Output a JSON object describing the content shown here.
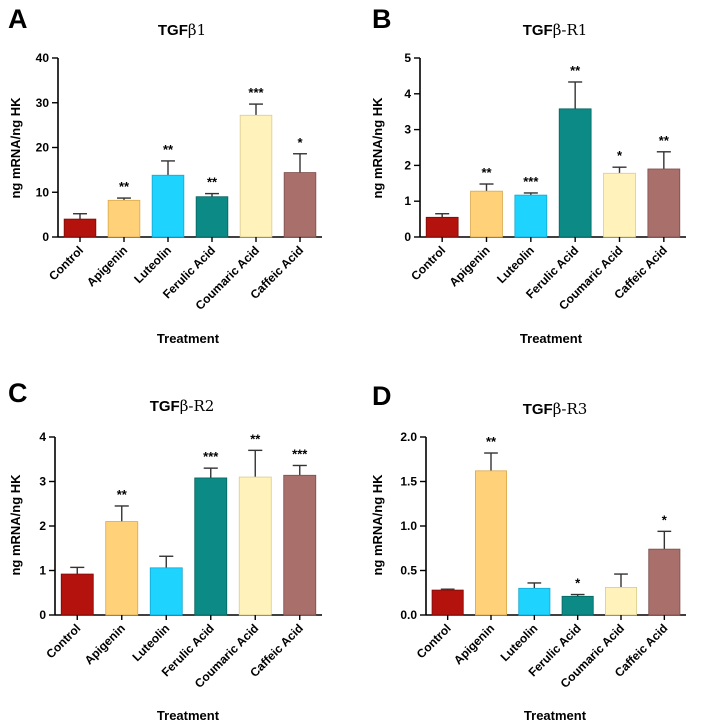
{
  "chart_data": [
    {
      "type": "bar",
      "panel": "A",
      "title_main": "TGF",
      "title_greek": "β",
      "title_suffix": "1",
      "ylabel": "ng mRNA/ng HK",
      "xlabel": "Treatment",
      "ylim": [
        0,
        40
      ],
      "yticks": [
        "0",
        "10",
        "20",
        "30",
        "40"
      ],
      "ytick_values": [
        0,
        10,
        20,
        30,
        40
      ],
      "categories": [
        "Control",
        "Apigenin",
        "Luteolin",
        "Ferulic Acid",
        "Coumaric Acid",
        "Caffeic Acid"
      ],
      "values": [
        4.0,
        8.2,
        13.8,
        9.0,
        27.2,
        14.4
      ],
      "errors": [
        1.2,
        0.5,
        3.2,
        0.7,
        2.5,
        4.2
      ],
      "significance": [
        "",
        "**",
        "**",
        "**",
        "***",
        "*"
      ]
    },
    {
      "type": "bar",
      "panel": "B",
      "title_main": "TGF",
      "title_greek": "β",
      "title_suffix": "-R1",
      "ylabel": "ng mRNA/ng HK",
      "xlabel": "Treatment",
      "ylim": [
        0,
        5
      ],
      "yticks": [
        "0",
        "1",
        "2",
        "3",
        "4",
        "5"
      ],
      "ytick_values": [
        0,
        1,
        2,
        3,
        4,
        5
      ],
      "categories": [
        "Control",
        "Apigenin",
        "Luteolin",
        "Ferulic Acid",
        "Coumaric Acid",
        "Caffeic Acid"
      ],
      "values": [
        0.55,
        1.28,
        1.17,
        3.58,
        1.78,
        1.9
      ],
      "errors": [
        0.1,
        0.2,
        0.06,
        0.75,
        0.17,
        0.48
      ],
      "significance": [
        "",
        "**",
        "***",
        "**",
        "*",
        "**"
      ]
    },
    {
      "type": "bar",
      "panel": "C",
      "title_main": "TGF",
      "title_greek": "β",
      "title_suffix": "-R2",
      "ylabel": "ng mRNA/ng HK",
      "xlabel": "Treatment",
      "ylim": [
        0,
        4
      ],
      "yticks": [
        "0",
        "1",
        "2",
        "3",
        "4"
      ],
      "ytick_values": [
        0,
        1,
        2,
        3,
        4
      ],
      "categories": [
        "Control",
        "Apigenin",
        "Luteolin",
        "Ferulic Acid",
        "Coumaric Acid",
        "Caffeic Acid"
      ],
      "values": [
        0.92,
        2.1,
        1.06,
        3.08,
        3.1,
        3.14
      ],
      "errors": [
        0.15,
        0.35,
        0.26,
        0.22,
        0.6,
        0.22
      ],
      "significance": [
        "",
        "**",
        "",
        "***",
        "**",
        "***"
      ]
    },
    {
      "type": "bar",
      "panel": "D",
      "title_main": "TGF",
      "title_greek": "β",
      "title_suffix": "-R3",
      "ylabel": "ng mRNA/ng HK",
      "xlabel": "Treatment",
      "ylim": [
        0,
        2.0
      ],
      "yticks": [
        "0.0",
        "0.5",
        "1.0",
        "1.5",
        "2.0"
      ],
      "ytick_values": [
        0,
        0.5,
        1.0,
        1.5,
        2.0
      ],
      "categories": [
        "Control",
        "Apigenin",
        "Luteolin",
        "Ferulic Acid",
        "Coumaric Acid",
        "Caffeic Acid"
      ],
      "values": [
        0.28,
        1.62,
        0.3,
        0.21,
        0.31,
        0.74
      ],
      "errors": [
        0.01,
        0.2,
        0.06,
        0.02,
        0.15,
        0.2
      ],
      "significance": [
        "",
        "**",
        "",
        "*",
        "",
        "*"
      ]
    }
  ],
  "colors": [
    "#b3120d",
    "#ffd27a",
    "#1fd3ff",
    "#0c8a85",
    "#fff2ba",
    "#a86f6b"
  ],
  "edge_colors": [
    "#7a0a07",
    "#d9a84a",
    "#13a7cf",
    "#066360",
    "#d9cc8e",
    "#7d4e4b"
  ]
}
